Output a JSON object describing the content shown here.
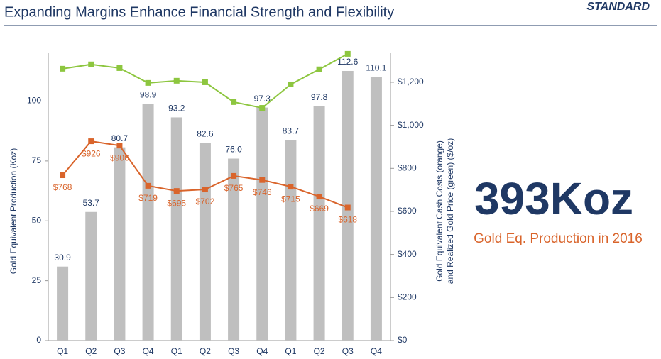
{
  "header": {
    "subtitle": "Expanding Margins Enhance Financial Strength and Flexibility",
    "logo": "STANDARD"
  },
  "callout": {
    "headline": "393Koz",
    "caption": "Gold Eq. Production in 2016"
  },
  "chart_data": {
    "type": "bar",
    "categories": [
      "Q1",
      "Q2",
      "Q3",
      "Q4",
      "Q1",
      "Q2",
      "Q3",
      "Q4",
      "Q1",
      "Q2",
      "Q3",
      "Q4"
    ],
    "ylabel": "Gold Equivalent Production (Koz)",
    "y2label": [
      "Gold Equivalent Cash Costs (orange)",
      "and Realized Gold Price (green) ($/oz)"
    ],
    "ylim": [
      0,
      120
    ],
    "yticks": [
      0,
      25,
      50,
      75,
      100
    ],
    "y2lim": [
      0,
      1335
    ],
    "y2ticks": [
      {
        "value": 0,
        "label": "$0"
      },
      {
        "value": 200,
        "label": "$200"
      },
      {
        "value": 400,
        "label": "$400"
      },
      {
        "value": 600,
        "label": "$600"
      },
      {
        "value": 800,
        "label": "$800"
      },
      {
        "value": 1000,
        "label": "$1,000"
      },
      {
        "value": 1200,
        "label": "$1,200"
      }
    ],
    "series": [
      {
        "name": "Gold Equivalent Production",
        "type": "bar",
        "color": "#bfbfbf",
        "values": [
          30.9,
          53.7,
          80.7,
          98.9,
          93.2,
          82.6,
          76,
          97.3,
          83.7,
          97.8,
          112.6,
          110.1
        ],
        "value_labels": [
          "30.9",
          "53.7",
          "80.7",
          "98.9",
          "93.2",
          "82.6",
          "76.0",
          "97.3",
          "83.7",
          "97.8",
          "112.6",
          "110.1"
        ]
      },
      {
        "name": "Cash Costs",
        "type": "line",
        "axis": "y2",
        "color": "#d9642b",
        "values": [
          768,
          926,
          906,
          719,
          695,
          702,
          765,
          746,
          715,
          669,
          618,
          null
        ],
        "value_labels": [
          "$768",
          "$926",
          "$906",
          "$719",
          "$695",
          "$702",
          "$765",
          "$746",
          "$715",
          "$669",
          "$618",
          null
        ]
      },
      {
        "name": "Realized Gold Price",
        "type": "line",
        "axis": "y2",
        "color": "#8dc63f",
        "values": [
          1263,
          1283,
          1266,
          1197,
          1207,
          1200,
          1108,
          1081,
          1190,
          1260,
          1332,
          null
        ]
      }
    ]
  }
}
